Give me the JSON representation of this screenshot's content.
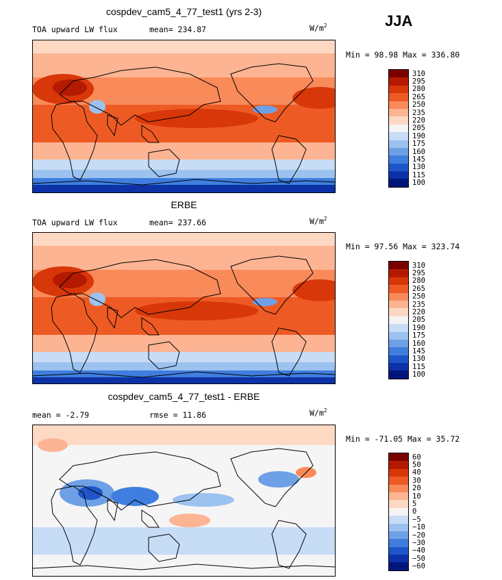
{
  "season": "JJA",
  "unit_base": "W/m",
  "unit_exp": "2",
  "panels": [
    {
      "title": "cospdev_cam5_4_77_test1 (yrs 2-3)",
      "left_label": "TOA upward LW flux",
      "stat_label": "mean= 234.87",
      "minmax": "Min =  98.98 Max = 336.80",
      "levels": [
        "310",
        "295",
        "280",
        "265",
        "250",
        "235",
        "220",
        "205",
        "190",
        "175",
        "160",
        "145",
        "130",
        "115",
        "100"
      ]
    },
    {
      "title": "ERBE",
      "left_label": "TOA upward LW flux",
      "stat_label": "mean= 237.66",
      "minmax": "Min =  97.56 Max = 323.74",
      "levels": [
        "310",
        "295",
        "280",
        "265",
        "250",
        "235",
        "220",
        "205",
        "190",
        "175",
        "160",
        "145",
        "130",
        "115",
        "100"
      ]
    },
    {
      "title": "cospdev_cam5_4_77_test1 - ERBE",
      "left_label": "mean =  -2.79",
      "stat_label": "rmse =  11.86",
      "minmax": "Min = -71.05 Max =  35.72",
      "levels": [
        "60",
        "50",
        "40",
        "30",
        "20",
        "10",
        "5",
        "0",
        "−5",
        "−10",
        "−20",
        "−30",
        "−40",
        "−50",
        "−60"
      ]
    }
  ],
  "colors": {
    "abs_scale": [
      "#7a0000",
      "#b31a00",
      "#d8370a",
      "#ee5a24",
      "#f98a5a",
      "#fcb493",
      "#fdd9c4",
      "#f3f4f4",
      "#c7dcf5",
      "#9cc2ef",
      "#6ea0e6",
      "#3f7ede",
      "#1f55c8",
      "#0d32a8",
      "#00157a"
    ],
    "diff_scale": [
      "#7a0000",
      "#b31a00",
      "#d8370a",
      "#ee5a24",
      "#f98a5a",
      "#fcb493",
      "#fdd9c4",
      "#f5f5f5",
      "#c7dcf5",
      "#9cc2ef",
      "#6ea0e6",
      "#3f7ede",
      "#1f55c8",
      "#0d32a8",
      "#00157a"
    ]
  },
  "chart_data": [
    {
      "type": "heatmap",
      "title": "cospdev_cam5_4_77_test1 (yrs 2-3)",
      "subtitle": "TOA upward LW flux",
      "mean": 234.87,
      "min": 98.98,
      "max": 336.8,
      "unit": "W/m2",
      "contour_levels": [
        100,
        115,
        130,
        145,
        160,
        175,
        190,
        205,
        220,
        235,
        250,
        265,
        280,
        295,
        310
      ]
    },
    {
      "type": "heatmap",
      "title": "ERBE",
      "subtitle": "TOA upward LW flux",
      "mean": 237.66,
      "min": 97.56,
      "max": 323.74,
      "unit": "W/m2",
      "contour_levels": [
        100,
        115,
        130,
        145,
        160,
        175,
        190,
        205,
        220,
        235,
        250,
        265,
        280,
        295,
        310
      ]
    },
    {
      "type": "heatmap",
      "title": "cospdev_cam5_4_77_test1 - ERBE",
      "mean": -2.79,
      "rmse": 11.86,
      "min": -71.05,
      "max": 35.72,
      "unit": "W/m2",
      "contour_levels": [
        -60,
        -50,
        -40,
        -30,
        -20,
        -10,
        -5,
        0,
        5,
        10,
        20,
        30,
        40,
        50,
        60
      ]
    }
  ]
}
